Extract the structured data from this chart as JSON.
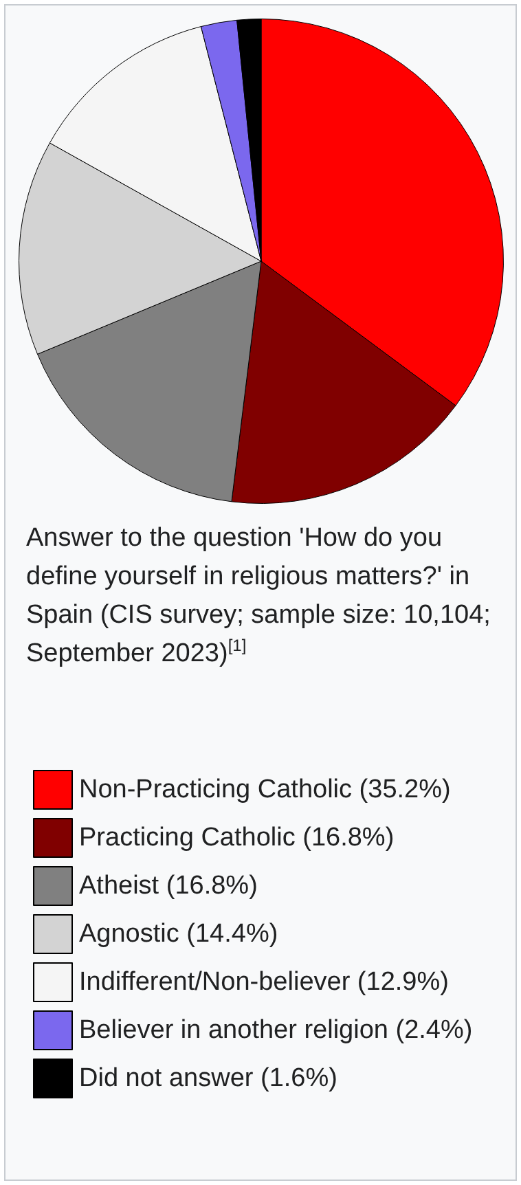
{
  "chart_data": {
    "type": "pie",
    "title": "Answer to the question 'How do you define yourself in religious matters?' in Spain (CIS survey; sample size: 10,104; September 2023)$^{[1]}$",
    "categories": [
      "Non-Practicing Catholic",
      "Practicing Catholic",
      "Atheist",
      "Agnostic",
      "Indifferent/Non-believer",
      "Believer in another religion",
      "Did not answer"
    ],
    "values": [
      35.2,
      16.8,
      16.8,
      14.4,
      12.9,
      2.4,
      1.6
    ],
    "value_labels": [
      "(35.2%)",
      "(16.8%)",
      "(16.8%)",
      "(14.4%)",
      "(12.9%)",
      "(2.4%)",
      "(1.6%)"
    ],
    "colors": [
      "#ff0000",
      "#800000",
      "#808080",
      "#d3d3d3",
      "#f5f5f5",
      "#7b68ee",
      "#000000"
    ],
    "legend": "bottom"
  }
}
